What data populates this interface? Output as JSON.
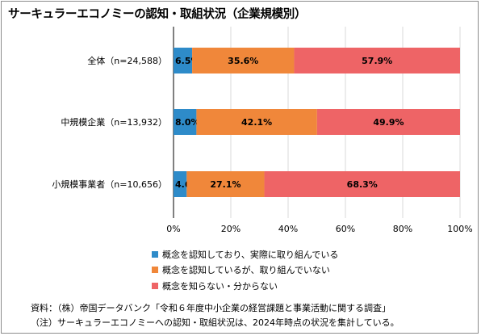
{
  "title": "サーキュラーエコノミーの認知・取組状況（企業規模別）",
  "colors": {
    "series": [
      "#2e8bc9",
      "#f0873a",
      "#ee6466"
    ],
    "grid": "#d9d9d9",
    "axis": "#000000"
  },
  "chart_data": {
    "type": "bar",
    "orientation": "horizontal",
    "stacked": true,
    "categories": [
      "全体（n=24,588）",
      "中規模企業（n=13,932）",
      "小規模事業者（n=10,656）"
    ],
    "series": [
      {
        "name": "概念を認知しており、実際に取り組んでいる",
        "values": [
          6.5,
          8.0,
          4.6
        ],
        "labels": [
          "6.5%",
          "8.0%",
          "4.6%"
        ]
      },
      {
        "name": "概念を認知しているが、取り組んでいない",
        "values": [
          35.6,
          42.1,
          27.1
        ],
        "labels": [
          "35.6%",
          "42.1%",
          "27.1%"
        ]
      },
      {
        "name": "概念を知らない・分からない",
        "values": [
          57.9,
          49.9,
          68.3
        ],
        "labels": [
          "57.9%",
          "49.9%",
          "68.3%"
        ]
      }
    ],
    "xlim": [
      0,
      100
    ],
    "xticks": [
      "0%",
      "20%",
      "40%",
      "60%",
      "80%",
      "100%"
    ],
    "grid": true,
    "legend_position": "bottom"
  },
  "notes": {
    "source": "資料：（株）帝国データバンク「令和６年度中小企業の経営課題と事業活動に関する調査」",
    "note": "（注）サーキュラーエコノミーへの認知・取組状況は、2024年時点の状況を集計している。"
  }
}
